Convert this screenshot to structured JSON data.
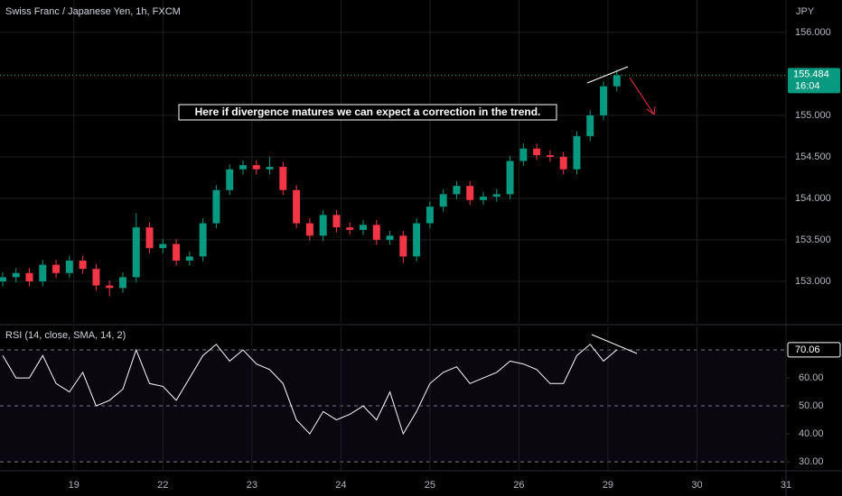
{
  "chart_data": [
    {
      "type": "candlestick",
      "title": "Swiss Franc / Japanese Yen, 1h, FXCM",
      "axis_unit": "JPY",
      "annotation": "Here if divergence matures we can expect a correction in the trend.",
      "countdown": "16:04",
      "up_color": "#089981",
      "down_color": "#f23645",
      "x": [
        -0.8,
        -0.65,
        -0.5,
        -0.35,
        -0.2,
        -0.05,
        0.1,
        0.25,
        0.4,
        0.55,
        0.7,
        0.85,
        1.0,
        1.15,
        1.3,
        1.45,
        1.6,
        1.75,
        1.9,
        2.05,
        2.2,
        2.35,
        2.5,
        2.65,
        2.8,
        2.95,
        3.1,
        3.25,
        3.4,
        3.55,
        3.7,
        3.85,
        4.0,
        4.15,
        4.3,
        4.45,
        4.6,
        4.75,
        4.9,
        5.05,
        5.2,
        5.35,
        5.5,
        5.65,
        5.8,
        5.95,
        6.1
      ],
      "open": [
        153.0,
        153.05,
        153.1,
        153.0,
        153.2,
        153.1,
        153.25,
        153.15,
        152.95,
        152.92,
        153.05,
        153.65,
        153.4,
        153.45,
        153.25,
        153.3,
        153.7,
        154.1,
        154.35,
        154.4,
        154.35,
        154.38,
        154.1,
        153.7,
        153.55,
        153.8,
        153.65,
        153.62,
        153.68,
        153.5,
        153.55,
        153.3,
        153.7,
        153.9,
        154.05,
        154.15,
        153.98,
        154.02,
        154.05,
        154.45,
        154.6,
        154.52,
        154.5,
        154.35,
        154.75,
        155.0,
        155.35
      ],
      "high": [
        153.11,
        153.16,
        153.16,
        153.26,
        153.26,
        153.31,
        153.31,
        153.21,
        153.01,
        153.11,
        153.82,
        153.71,
        153.51,
        153.51,
        153.36,
        153.76,
        154.16,
        154.41,
        154.46,
        154.46,
        154.5,
        154.44,
        154.16,
        153.76,
        153.86,
        153.86,
        153.71,
        153.74,
        153.74,
        153.61,
        153.61,
        153.76,
        153.96,
        154.11,
        154.21,
        154.21,
        154.08,
        154.11,
        154.51,
        154.66,
        154.66,
        154.58,
        154.56,
        154.81,
        155.06,
        155.41,
        155.55
      ],
      "low": [
        152.94,
        152.99,
        152.94,
        152.94,
        153.04,
        153.04,
        153.09,
        152.89,
        152.82,
        152.86,
        152.99,
        153.34,
        153.34,
        153.19,
        153.19,
        153.24,
        153.64,
        154.04,
        154.29,
        154.29,
        154.29,
        154.04,
        153.64,
        153.49,
        153.49,
        153.59,
        153.56,
        153.56,
        153.44,
        153.44,
        153.22,
        153.24,
        153.64,
        153.84,
        153.99,
        153.92,
        153.92,
        153.96,
        153.99,
        154.39,
        154.46,
        154.44,
        154.29,
        154.29,
        154.69,
        154.94,
        155.29
      ],
      "close": [
        153.05,
        153.1,
        153.0,
        153.2,
        153.1,
        153.25,
        153.15,
        152.95,
        152.92,
        153.05,
        153.65,
        153.4,
        153.45,
        153.25,
        153.3,
        153.7,
        154.1,
        154.35,
        154.4,
        154.35,
        154.38,
        154.1,
        153.7,
        153.55,
        153.8,
        153.65,
        153.62,
        153.68,
        153.5,
        153.55,
        153.3,
        153.7,
        153.9,
        154.05,
        154.15,
        153.98,
        154.02,
        154.05,
        154.45,
        154.6,
        154.52,
        154.5,
        154.35,
        154.75,
        155.0,
        155.35,
        155.484
      ],
      "xlim": [
        -0.83,
        8
      ],
      "ylim": [
        152.5,
        156.39
      ],
      "yticks": [
        {
          "value": 153,
          "label": "153.000"
        },
        {
          "value": 153.5,
          "label": "153.500"
        },
        {
          "value": 154,
          "label": "154.000"
        },
        {
          "value": 154.5,
          "label": "154.500"
        },
        {
          "value": 155,
          "label": "155.000"
        },
        {
          "value": 156,
          "label": "156.000"
        }
      ]
    },
    {
      "type": "line",
      "title": "RSI (14, close, SMA, 14, 2)",
      "color": "#ffffff",
      "values": [
        68,
        60,
        60,
        68,
        58,
        55,
        62,
        50,
        52,
        56,
        70,
        58,
        57,
        52,
        60,
        68,
        72,
        66,
        70,
        65,
        63,
        58,
        45,
        40,
        48,
        45,
        47,
        50,
        45,
        55,
        40,
        48,
        58,
        62,
        64,
        58,
        60,
        62,
        66,
        65,
        63,
        58,
        58,
        68,
        72,
        66,
        70.06
      ],
      "levels": [
        70,
        50,
        30
      ],
      "xlim": [
        -0.83,
        8
      ],
      "ylim": [
        26.8,
        78.4
      ],
      "yticks": [
        {
          "value": 30,
          "label": "30.00"
        },
        {
          "value": 40,
          "label": "40.00"
        },
        {
          "value": 50,
          "label": "50.00"
        },
        {
          "value": 60,
          "label": "60.00"
        }
      ],
      "xticks": [
        {
          "value": 0,
          "label": "19"
        },
        {
          "value": 1,
          "label": "22"
        },
        {
          "value": 2,
          "label": "23"
        },
        {
          "value": 3,
          "label": "24"
        },
        {
          "value": 4,
          "label": "25"
        },
        {
          "value": 5,
          "label": "26"
        },
        {
          "value": 6,
          "label": "29"
        },
        {
          "value": 7,
          "label": "30"
        },
        {
          "value": 8,
          "label": "31"
        }
      ]
    }
  ]
}
